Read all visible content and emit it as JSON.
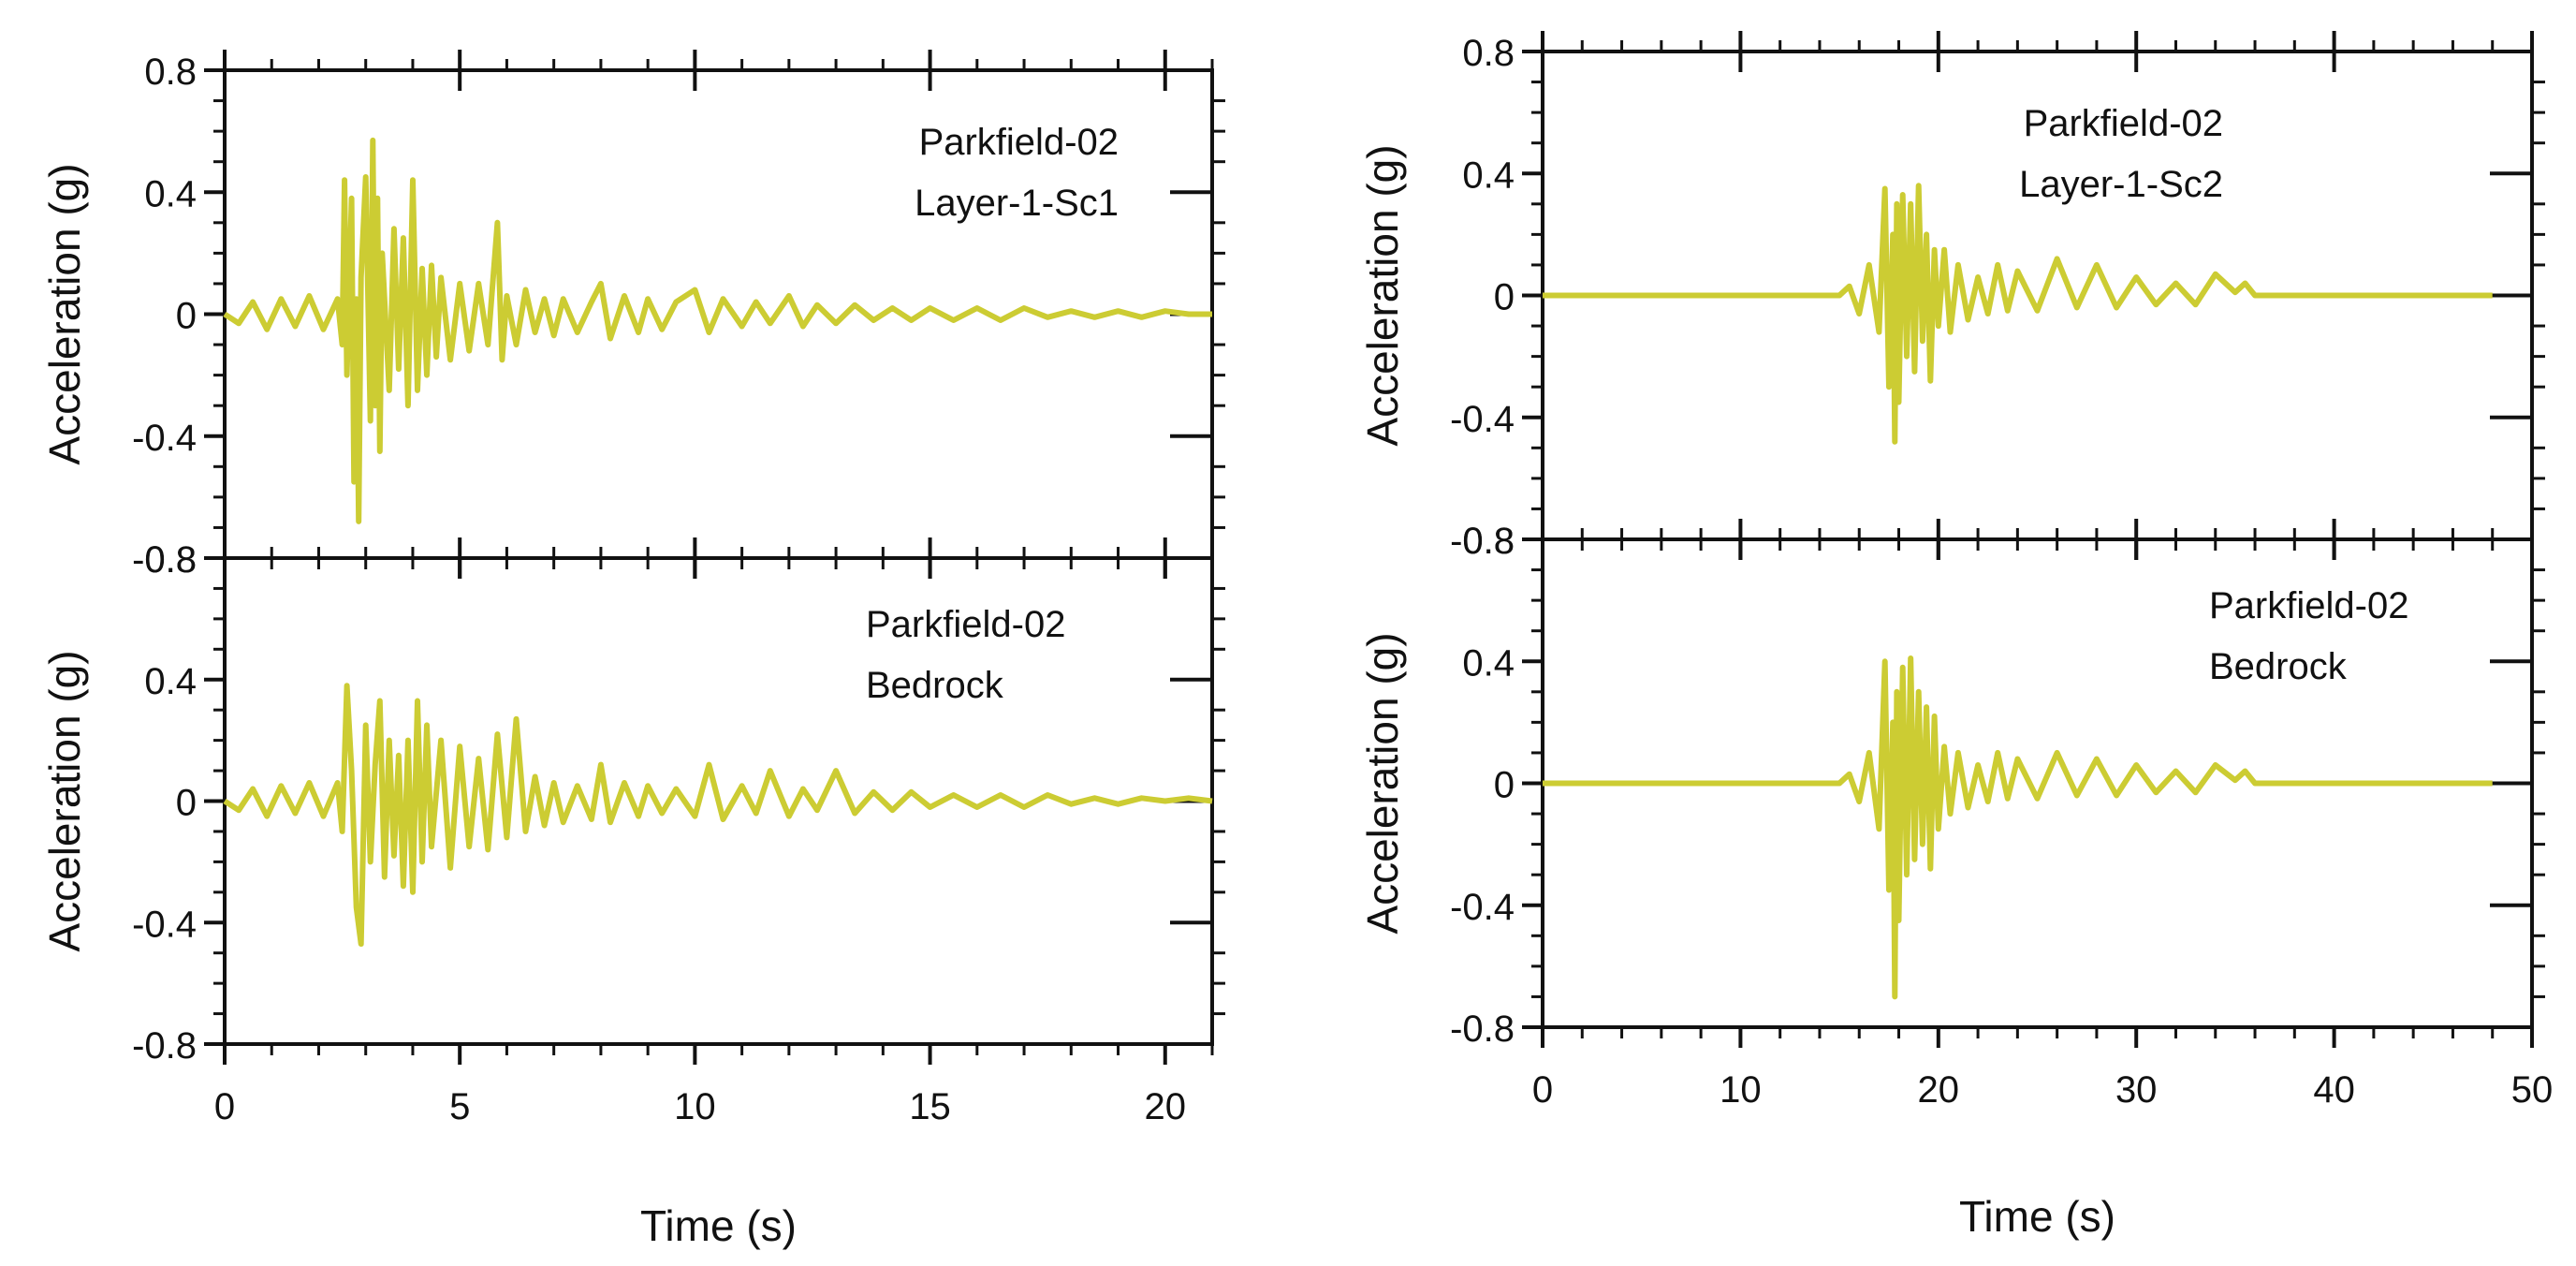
{
  "chart_data": [
    {
      "type": "line",
      "panel": "left-top",
      "annotation": [
        "Parkfield-02",
        "Layer-1-Sc1"
      ],
      "xlabel": "",
      "ylabel": "Acceleration (g)",
      "xlim": [
        0,
        21
      ],
      "ylim": [
        -0.8,
        0.8
      ],
      "xticks": [],
      "yticks": [
        "-0.8",
        "-0.4",
        "0",
        "0.4",
        "0.8"
      ],
      "grid": false,
      "series": [
        {
          "color": "#cccc33",
          "x": [
            0,
            0.3,
            0.6,
            0.9,
            1.2,
            1.5,
            1.8,
            2.1,
            2.4,
            2.5,
            2.55,
            2.6,
            2.7,
            2.75,
            2.8,
            2.85,
            2.9,
            3.0,
            3.1,
            3.15,
            3.2,
            3.25,
            3.3,
            3.35,
            3.5,
            3.6,
            3.7,
            3.8,
            3.9,
            4.0,
            4.1,
            4.2,
            4.3,
            4.4,
            4.5,
            4.6,
            4.8,
            5.0,
            5.2,
            5.4,
            5.6,
            5.8,
            5.9,
            6.0,
            6.2,
            6.4,
            6.6,
            6.8,
            7.0,
            7.2,
            7.5,
            7.8,
            8.0,
            8.2,
            8.5,
            8.8,
            9.0,
            9.3,
            9.6,
            10.0,
            10.3,
            10.6,
            11.0,
            11.3,
            11.6,
            12.0,
            12.3,
            12.6,
            13.0,
            13.4,
            13.8,
            14.2,
            14.6,
            15.0,
            15.5,
            16.0,
            16.5,
            17.0,
            17.5,
            18.0,
            18.5,
            19.0,
            19.5,
            20.0,
            20.5,
            21.0
          ],
          "y": [
            0,
            -0.03,
            0.04,
            -0.05,
            0.05,
            -0.04,
            0.06,
            -0.05,
            0.05,
            -0.1,
            0.44,
            -0.2,
            0.38,
            -0.55,
            0.05,
            -0.68,
            0.12,
            0.45,
            -0.35,
            0.57,
            -0.3,
            0.38,
            -0.45,
            0.2,
            -0.25,
            0.28,
            -0.18,
            0.25,
            -0.3,
            0.44,
            -0.25,
            0.15,
            -0.2,
            0.16,
            -0.14,
            0.12,
            -0.15,
            0.1,
            -0.12,
            0.1,
            -0.1,
            0.3,
            -0.15,
            0.06,
            -0.1,
            0.08,
            -0.06,
            0.05,
            -0.07,
            0.05,
            -0.06,
            0.04,
            0.1,
            -0.08,
            0.06,
            -0.06,
            0.05,
            -0.05,
            0.04,
            0.08,
            -0.06,
            0.05,
            -0.04,
            0.04,
            -0.03,
            0.06,
            -0.04,
            0.03,
            -0.03,
            0.03,
            -0.02,
            0.02,
            -0.02,
            0.02,
            -0.02,
            0.02,
            -0.02,
            0.02,
            -0.01,
            0.01,
            -0.01,
            0.01,
            -0.01,
            0.01,
            0,
            0
          ]
        }
      ]
    },
    {
      "type": "line",
      "panel": "left-bottom",
      "annotation": [
        "Parkfield-02",
        "Bedrock"
      ],
      "xlabel": "Time (s)",
      "ylabel": "Acceleration (g)",
      "xlim": [
        0,
        21
      ],
      "ylim": [
        -0.8,
        0.8
      ],
      "xticks": [
        "0",
        "5",
        "10",
        "15",
        "20"
      ],
      "yticks": [
        "-0.8",
        "-0.4",
        "0",
        "0.4",
        "0.8"
      ],
      "grid": false,
      "series": [
        {
          "color": "#cccc33",
          "x": [
            0,
            0.3,
            0.6,
            0.9,
            1.2,
            1.5,
            1.8,
            2.1,
            2.4,
            2.5,
            2.6,
            2.7,
            2.8,
            2.9,
            3.0,
            3.1,
            3.2,
            3.3,
            3.4,
            3.5,
            3.6,
            3.7,
            3.8,
            3.9,
            4.0,
            4.1,
            4.2,
            4.3,
            4.4,
            4.6,
            4.8,
            5.0,
            5.2,
            5.4,
            5.6,
            5.8,
            6.0,
            6.2,
            6.4,
            6.6,
            6.8,
            7.0,
            7.2,
            7.5,
            7.8,
            8.0,
            8.2,
            8.5,
            8.8,
            9.0,
            9.3,
            9.6,
            10.0,
            10.3,
            10.6,
            11.0,
            11.3,
            11.6,
            12.0,
            12.3,
            12.6,
            13.0,
            13.4,
            13.8,
            14.2,
            14.6,
            15.0,
            15.5,
            16.0,
            16.5,
            17.0,
            17.5,
            18.0,
            18.5,
            19.0,
            19.5,
            20.0,
            20.5,
            21.0
          ],
          "y": [
            0,
            -0.03,
            0.04,
            -0.05,
            0.05,
            -0.04,
            0.06,
            -0.05,
            0.06,
            -0.1,
            0.38,
            0.1,
            -0.35,
            -0.47,
            0.25,
            -0.2,
            0.12,
            0.33,
            -0.25,
            0.2,
            -0.18,
            0.15,
            -0.28,
            0.2,
            -0.3,
            0.33,
            -0.2,
            0.25,
            -0.15,
            0.2,
            -0.22,
            0.18,
            -0.15,
            0.14,
            -0.16,
            0.22,
            -0.12,
            0.27,
            -0.1,
            0.08,
            -0.08,
            0.06,
            -0.07,
            0.05,
            -0.06,
            0.12,
            -0.07,
            0.06,
            -0.05,
            0.05,
            -0.04,
            0.04,
            -0.05,
            0.12,
            -0.06,
            0.05,
            -0.04,
            0.1,
            -0.05,
            0.04,
            -0.03,
            0.1,
            -0.04,
            0.03,
            -0.03,
            0.03,
            -0.02,
            0.02,
            -0.02,
            0.02,
            -0.02,
            0.02,
            -0.01,
            0.01,
            -0.01,
            0.01,
            0,
            0.01,
            0
          ]
        }
      ]
    },
    {
      "type": "line",
      "panel": "right-top",
      "annotation": [
        "Parkfield-02",
        "Layer-1-Sc2"
      ],
      "xlabel": "",
      "ylabel": "Acceleration (g)",
      "xlim": [
        0,
        50
      ],
      "ylim": [
        -0.8,
        0.8
      ],
      "xticks": [],
      "yticks": [
        "-0.8",
        "-0.4",
        "0",
        "0.4",
        "0.8"
      ],
      "grid": false,
      "series": [
        {
          "color": "#cccc33",
          "x": [
            0,
            5,
            10,
            15,
            15.5,
            16,
            16.5,
            17,
            17.3,
            17.5,
            17.7,
            17.8,
            17.9,
            18,
            18.2,
            18.4,
            18.6,
            18.8,
            19,
            19.2,
            19.4,
            19.6,
            19.8,
            20,
            20.3,
            20.6,
            21,
            21.5,
            22,
            22.5,
            23,
            23.5,
            24,
            25,
            26,
            27,
            28,
            29,
            30,
            31,
            32,
            33,
            34,
            35,
            35.5,
            36,
            38,
            40,
            42,
            44,
            46,
            48
          ],
          "y": [
            0,
            0,
            0,
            0,
            0.03,
            -0.06,
            0.1,
            -0.12,
            0.35,
            -0.3,
            0.2,
            -0.48,
            0.3,
            -0.35,
            0.33,
            -0.2,
            0.3,
            -0.25,
            0.36,
            -0.15,
            0.2,
            -0.28,
            0.15,
            -0.1,
            0.15,
            -0.12,
            0.1,
            -0.08,
            0.06,
            -0.06,
            0.1,
            -0.05,
            0.08,
            -0.05,
            0.12,
            -0.04,
            0.1,
            -0.04,
            0.06,
            -0.03,
            0.04,
            -0.03,
            0.07,
            0.01,
            0.04,
            0,
            0,
            0,
            0,
            0,
            0,
            0
          ]
        }
      ]
    },
    {
      "type": "line",
      "panel": "right-bottom",
      "annotation": [
        "Parkfield-02",
        "Bedrock"
      ],
      "xlabel": "Time (s)",
      "ylabel": "Acceleration (g)",
      "xlim": [
        0,
        50
      ],
      "ylim": [
        -0.8,
        0.8
      ],
      "xticks": [
        "0",
        "10",
        "20",
        "30",
        "40",
        "50"
      ],
      "yticks": [
        "-0.8",
        "-0.4",
        "0",
        "0.4",
        "0.8"
      ],
      "grid": false,
      "series": [
        {
          "color": "#cccc33",
          "x": [
            0,
            5,
            10,
            15,
            15.5,
            16,
            16.5,
            17,
            17.3,
            17.5,
            17.7,
            17.8,
            17.9,
            18,
            18.2,
            18.4,
            18.6,
            18.8,
            19,
            19.2,
            19.4,
            19.6,
            19.8,
            20,
            20.3,
            20.6,
            21,
            21.5,
            22,
            22.5,
            23,
            23.5,
            24,
            25,
            26,
            27,
            28,
            29,
            30,
            31,
            32,
            33,
            34,
            35,
            35.5,
            36,
            38,
            40,
            42,
            44,
            46,
            48
          ],
          "y": [
            0,
            0,
            0,
            0,
            0.03,
            -0.06,
            0.1,
            -0.15,
            0.4,
            -0.35,
            0.2,
            -0.7,
            0.3,
            -0.45,
            0.38,
            -0.3,
            0.41,
            -0.25,
            0.3,
            -0.2,
            0.25,
            -0.28,
            0.22,
            -0.15,
            0.12,
            -0.1,
            0.1,
            -0.08,
            0.06,
            -0.06,
            0.1,
            -0.05,
            0.08,
            -0.05,
            0.1,
            -0.04,
            0.08,
            -0.04,
            0.06,
            -0.03,
            0.04,
            -0.03,
            0.06,
            0.01,
            0.04,
            0,
            0,
            0,
            0,
            0,
            0,
            0
          ]
        }
      ]
    }
  ]
}
